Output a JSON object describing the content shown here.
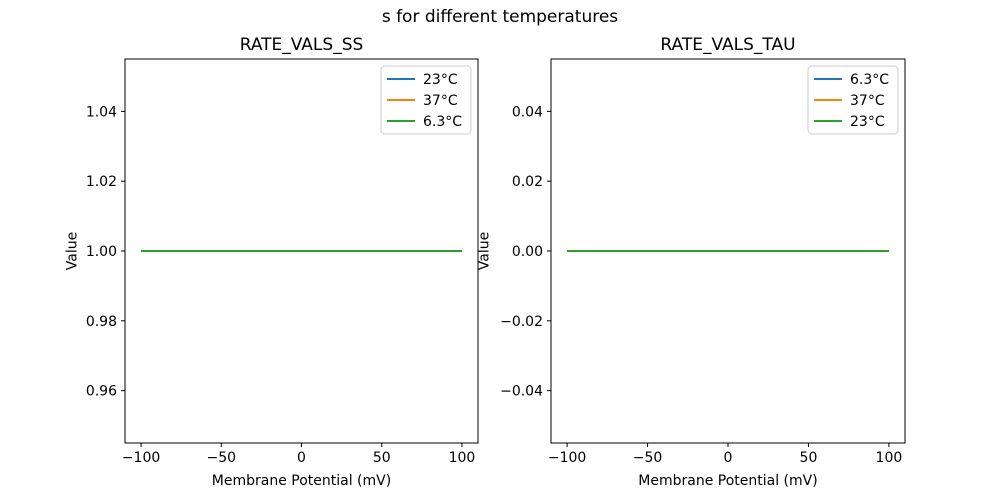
{
  "figure": {
    "suptitle": "s for different temperatures",
    "background": "#ffffff"
  },
  "colors": {
    "axis": "#000000",
    "text": "#000000",
    "legend_border": "#cccccc",
    "legend_bg": "#ffffff",
    "tab_blue": "#1f77b4",
    "tab_orange": "#ff7f0e",
    "tab_green": "#2ca02c"
  },
  "chart_data": [
    {
      "type": "line",
      "title": "RATE_VALS_SS",
      "xlabel": "Membrane Potential (mV)",
      "ylabel": "Value",
      "xlim": [
        -110,
        110
      ],
      "ylim": [
        0.945,
        1.055
      ],
      "xticks": [
        -100,
        -50,
        0,
        50,
        100
      ],
      "xtick_labels": [
        "−100",
        "−50",
        "0",
        "50",
        "100"
      ],
      "yticks": [
        0.96,
        0.98,
        1.0,
        1.02,
        1.04
      ],
      "ytick_labels": [
        "0.96",
        "0.98",
        "1.00",
        "1.02",
        "1.04"
      ],
      "grid": false,
      "legend_position": "upper right",
      "x": [
        -100,
        100
      ],
      "series": [
        {
          "name": "23°C",
          "color": "#1f77b4",
          "values": [
            1.0,
            1.0
          ]
        },
        {
          "name": "37°C",
          "color": "#ff7f0e",
          "values": [
            1.0,
            1.0
          ]
        },
        {
          "name": "6.3°C",
          "color": "#2ca02c",
          "values": [
            1.0,
            1.0
          ]
        }
      ]
    },
    {
      "type": "line",
      "title": "RATE_VALS_TAU",
      "xlabel": "Membrane Potential (mV)",
      "ylabel": "Value",
      "xlim": [
        -110,
        110
      ],
      "ylim": [
        -0.055,
        0.055
      ],
      "xticks": [
        -100,
        -50,
        0,
        50,
        100
      ],
      "xtick_labels": [
        "−100",
        "−50",
        "0",
        "50",
        "100"
      ],
      "yticks": [
        -0.04,
        -0.02,
        0.0,
        0.02,
        0.04
      ],
      "ytick_labels": [
        "−0.04",
        "−0.02",
        "0.00",
        "0.02",
        "0.04"
      ],
      "grid": false,
      "legend_position": "upper right",
      "x": [
        -100,
        100
      ],
      "series": [
        {
          "name": "6.3°C",
          "color": "#1f77b4",
          "values": [
            0.0,
            0.0
          ]
        },
        {
          "name": "37°C",
          "color": "#ff7f0e",
          "values": [
            0.0,
            0.0
          ]
        },
        {
          "name": "23°C",
          "color": "#2ca02c",
          "values": [
            0.0,
            0.0
          ]
        }
      ]
    }
  ]
}
